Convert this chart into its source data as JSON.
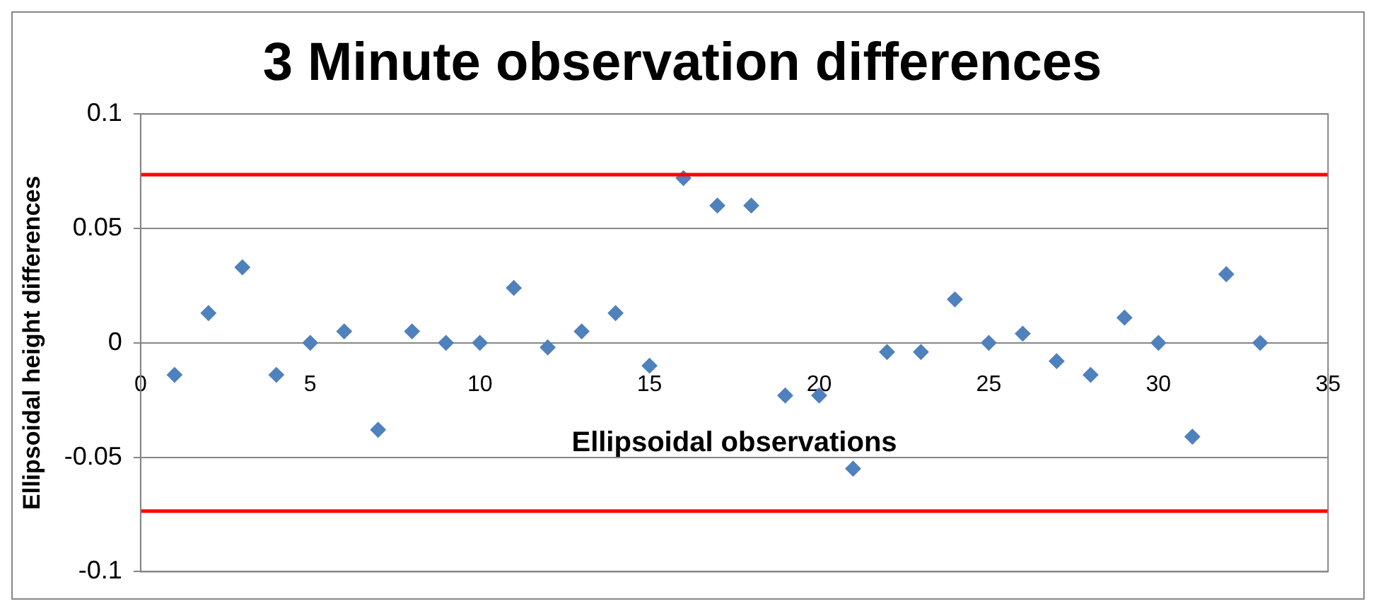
{
  "chart_data": {
    "type": "scatter",
    "title": "3 Minute observation differences",
    "xlabel": "Ellipsoidal observations",
    "ylabel": "Ellipsoidal height differences",
    "x": [
      1,
      2,
      3,
      4,
      5,
      6,
      7,
      8,
      9,
      10,
      11,
      12,
      13,
      14,
      15,
      16,
      17,
      18,
      19,
      20,
      21,
      22,
      23,
      24,
      25,
      26,
      27,
      28,
      29,
      30,
      31,
      32,
      33
    ],
    "series": [
      {
        "color": "#4f81bd",
        "values": [
          -0.014,
          0.013,
          0.033,
          -0.014,
          0,
          0.005,
          -0.038,
          0.005,
          0,
          0,
          0.024,
          -0.002,
          0.005,
          0.013,
          -0.01,
          0.072,
          0.06,
          0.06,
          -0.023,
          -0.023,
          -0.055,
          -0.004,
          -0.004,
          0.019,
          0,
          0.004,
          -0.008,
          -0.014,
          0.011,
          0,
          -0.041,
          0.03,
          0
        ]
      }
    ],
    "xlim": [
      0,
      35
    ],
    "xticks": [
      0,
      5,
      10,
      15,
      20,
      25,
      30,
      35
    ],
    "ylim": [
      -0.1,
      0.1
    ],
    "yticks": [
      -0.1,
      -0.05,
      0,
      0.05,
      0.1
    ],
    "ref_lines": [
      {
        "axis": "y",
        "value": 0.0735,
        "color": "#ff0000"
      },
      {
        "axis": "y",
        "value": -0.0735,
        "color": "#ff0000"
      }
    ],
    "grid": "y",
    "legend": false,
    "marker": "diamond"
  }
}
